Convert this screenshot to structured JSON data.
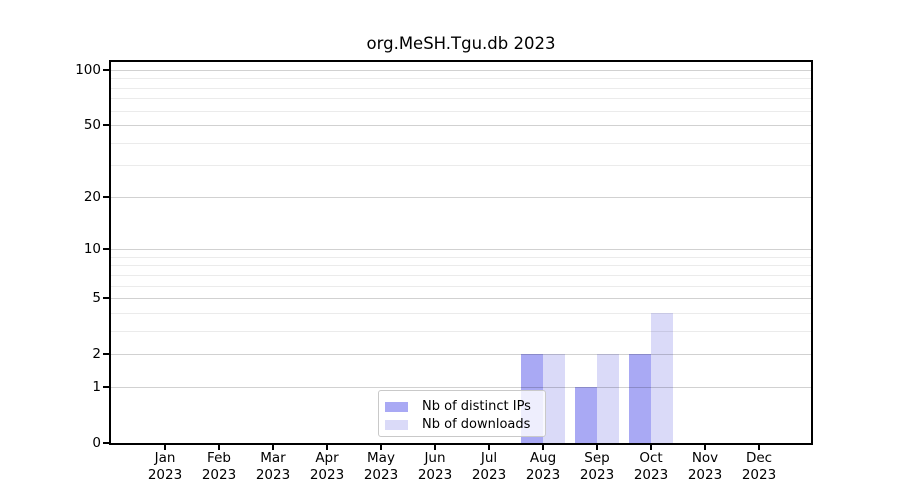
{
  "title": "org.MeSH.Tgu.db 2023",
  "chart_data": {
    "type": "bar",
    "title": "org.MeSH.Tgu.db 2023",
    "year_label": "2023",
    "months": [
      "Jan",
      "Feb",
      "Mar",
      "Apr",
      "May",
      "Jun",
      "Jul",
      "Aug",
      "Sep",
      "Oct",
      "Nov",
      "Dec"
    ],
    "series": [
      {
        "name": "Nb of distinct IPs",
        "color": "#a9a9f4",
        "values": [
          0,
          0,
          0,
          0,
          0,
          0,
          0,
          2,
          1,
          2,
          0,
          0
        ]
      },
      {
        "name": "Nb of downloads",
        "color": "#dadaf8",
        "values": [
          0,
          0,
          0,
          0,
          0,
          0,
          0,
          2,
          2,
          4,
          0,
          0
        ]
      }
    ],
    "y_axis": {
      "scale": "log1p",
      "tick_values": [
        0,
        1,
        2,
        5,
        10,
        20,
        50,
        100
      ],
      "tick_labels": [
        "0",
        "1",
        "2",
        "5",
        "10",
        "20",
        "50",
        "100"
      ],
      "minor_grid_values": [
        3,
        4,
        6,
        7,
        8,
        9,
        30,
        40,
        60,
        70,
        80,
        90
      ],
      "range": [
        0,
        110
      ]
    },
    "x_axis": {
      "tick_count": 12
    },
    "grid": true,
    "legend": {
      "position": "inside-bottom-center",
      "labels": [
        "Nb of distinct IPs",
        "Nb of downloads"
      ]
    },
    "colors": {
      "distinct_ips": "#a9a9f4",
      "downloads": "#dadaf8"
    }
  }
}
